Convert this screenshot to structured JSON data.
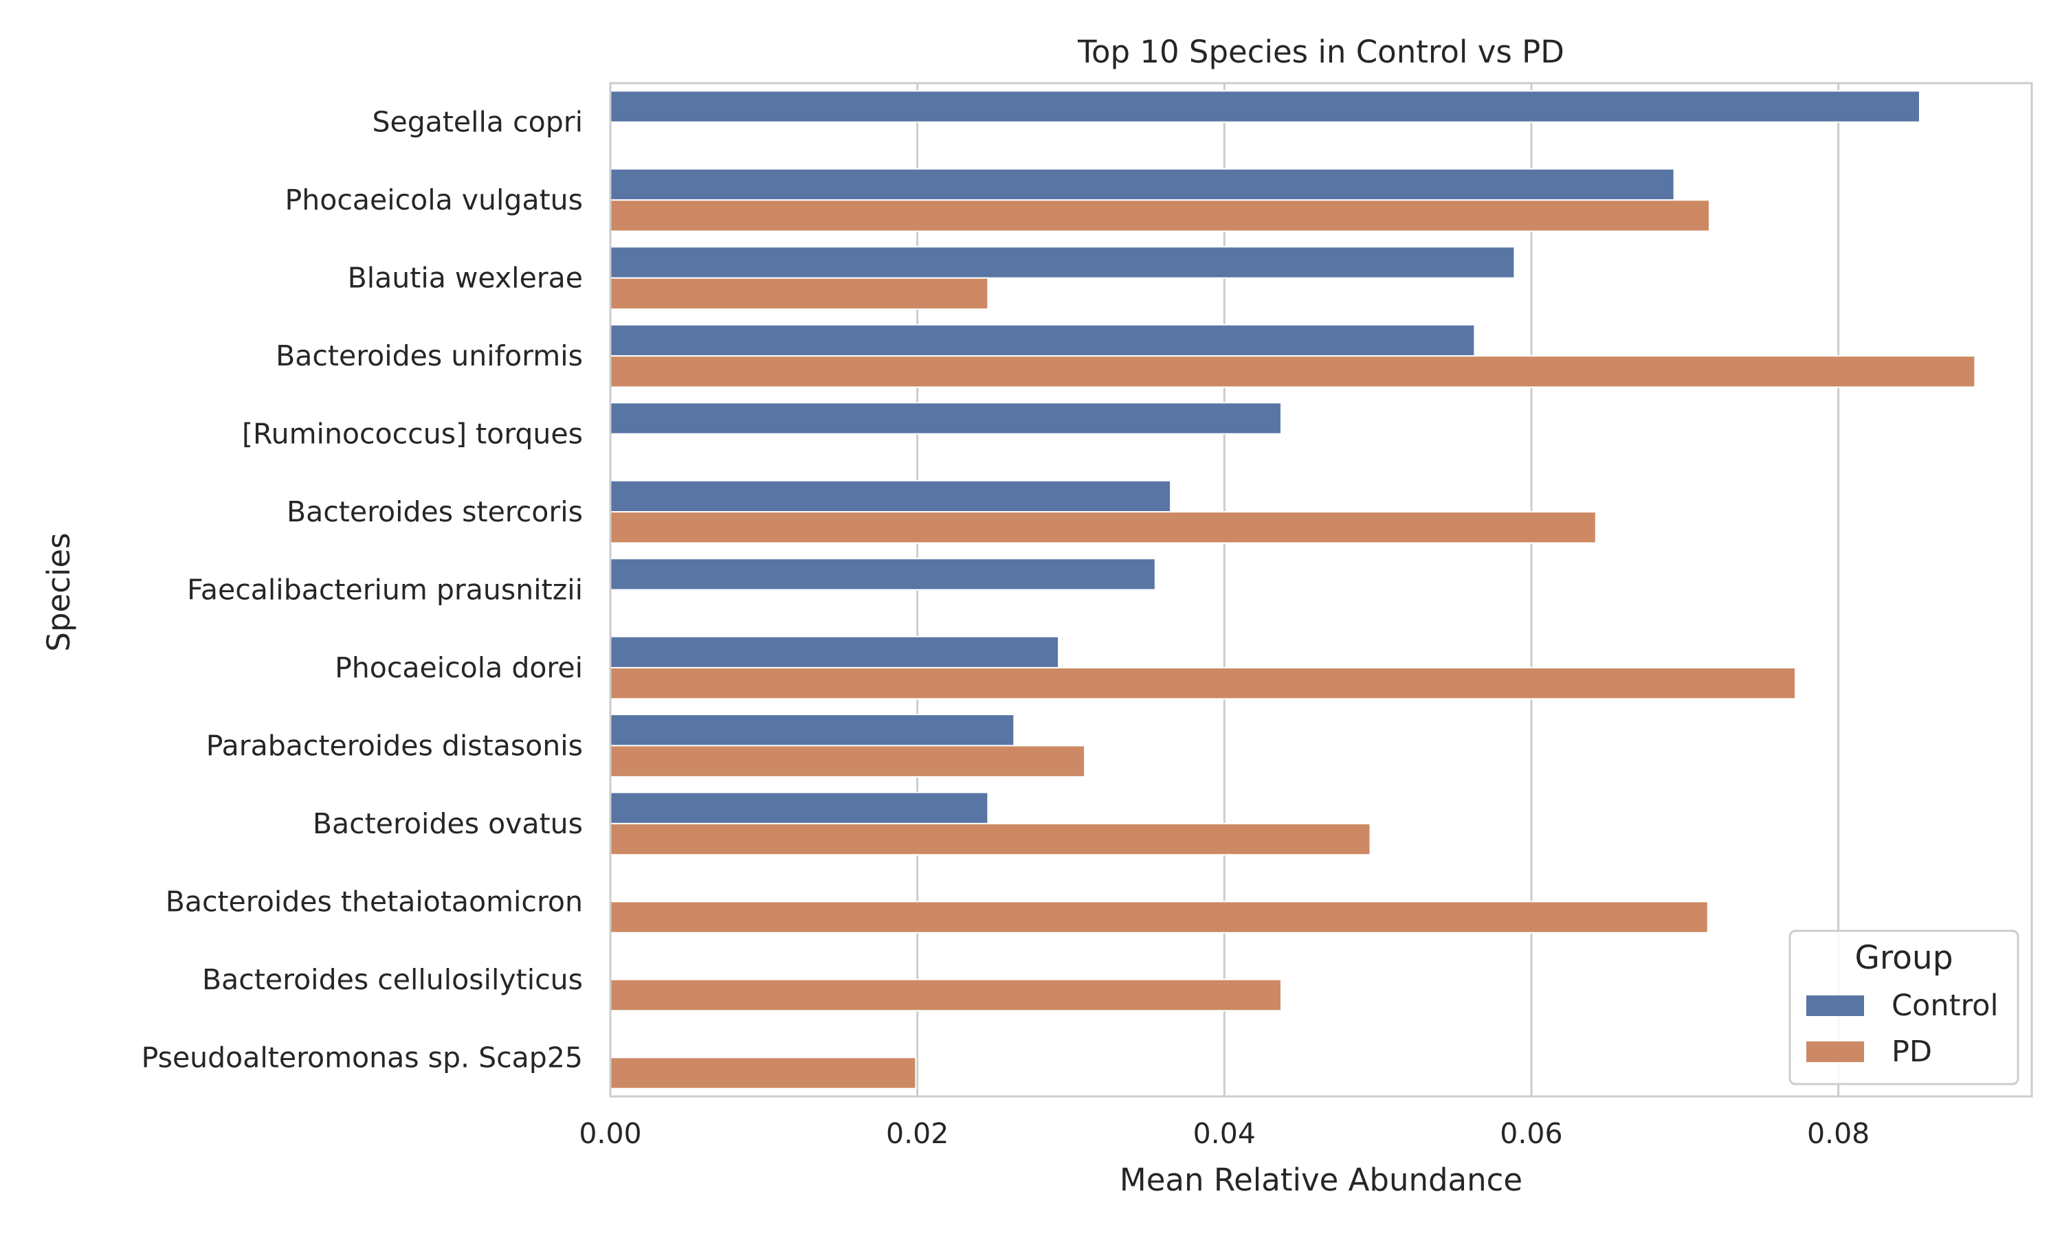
{
  "chart_data": {
    "type": "bar",
    "orientation": "horizontal",
    "title": "Top 10 Species in Control vs PD",
    "xlabel": "Mean Relative Abundance",
    "ylabel": "Species",
    "xlim": [
      0,
      0.0926
    ],
    "xticks": [
      "0.00",
      "0.02",
      "0.04",
      "0.06",
      "0.08"
    ],
    "grid": "vertical",
    "legend_title": "Group",
    "legend_position": "bottom-right",
    "categories": [
      "Segatella copri",
      "Phocaeicola vulgatus",
      "Blautia wexlerae",
      "Bacteroides uniformis",
      "[Ruminococcus] torques",
      "Bacteroides stercoris",
      "Faecalibacterium prausnitzii",
      "Phocaeicola dorei",
      "Parabacteroides distasonis",
      "Bacteroides ovatus",
      "Bacteroides thetaiotaomicron",
      "Bacteroides cellulosilyticus",
      "Pseudoalteromonas sp. Scap25"
    ],
    "series": [
      {
        "name": "Control",
        "color": "#5875a4",
        "values": [
          0.0853,
          0.0693,
          0.0589,
          0.0563,
          0.0437,
          0.0365,
          0.0355,
          0.0292,
          0.0263,
          0.0246,
          null,
          null,
          null
        ]
      },
      {
        "name": "PD",
        "color": "#cc8963",
        "values": [
          null,
          0.0716,
          0.0246,
          0.0889,
          null,
          0.0642,
          null,
          0.0772,
          0.0309,
          0.0495,
          0.0715,
          0.0437,
          0.0199
        ]
      }
    ]
  }
}
